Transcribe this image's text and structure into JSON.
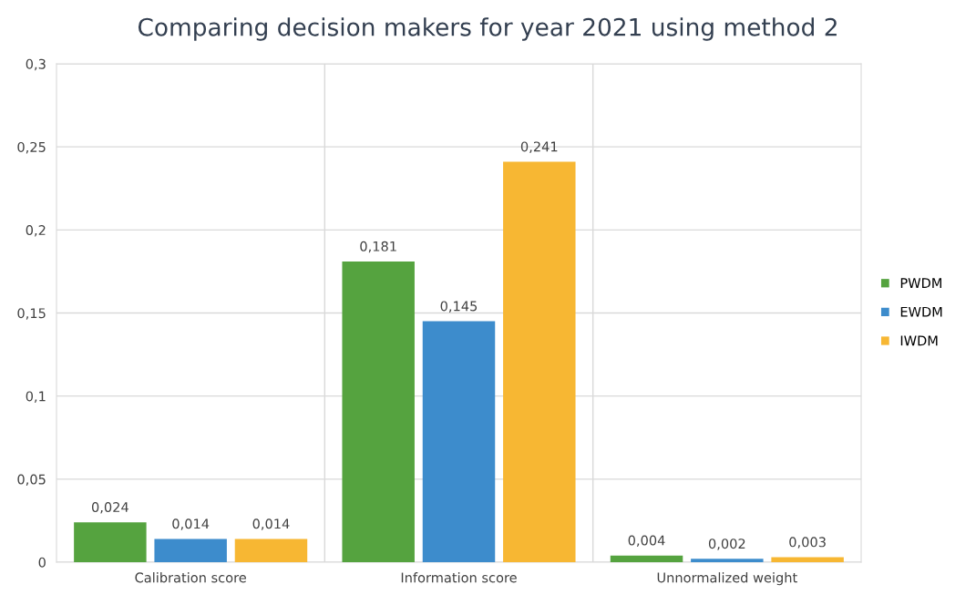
{
  "chart_data": {
    "type": "bar",
    "title": "Comparing decision makers for year 2021 using method 2",
    "categories": [
      "Calibration score",
      "Information score",
      "Unnormalized weight"
    ],
    "series": [
      {
        "name": "PWDM",
        "color": "#55a33f",
        "values": [
          0.024,
          0.181,
          0.004
        ],
        "value_labels": [
          "0,024",
          "0,181",
          "0,004"
        ]
      },
      {
        "name": "EWDM",
        "color": "#3d8ccc",
        "values": [
          0.014,
          0.145,
          0.002
        ],
        "value_labels": [
          "0,014",
          "0,145",
          "0,002"
        ]
      },
      {
        "name": "IWDM",
        "color": "#f7b733",
        "values": [
          0.014,
          0.241,
          0.003
        ],
        "value_labels": [
          "0,014",
          "0,241",
          "0,003"
        ]
      }
    ],
    "ylim": [
      0,
      0.3
    ],
    "yticks": [
      {
        "value": 0,
        "label": "0"
      },
      {
        "value": 0.05,
        "label": "0,05"
      },
      {
        "value": 0.1,
        "label": "0,1"
      },
      {
        "value": 0.15,
        "label": "0,15"
      },
      {
        "value": 0.2,
        "label": "0,2"
      },
      {
        "value": 0.25,
        "label": "0,25"
      },
      {
        "value": 0.3,
        "label": "0,3"
      }
    ],
    "grid": true,
    "legend": "right"
  }
}
